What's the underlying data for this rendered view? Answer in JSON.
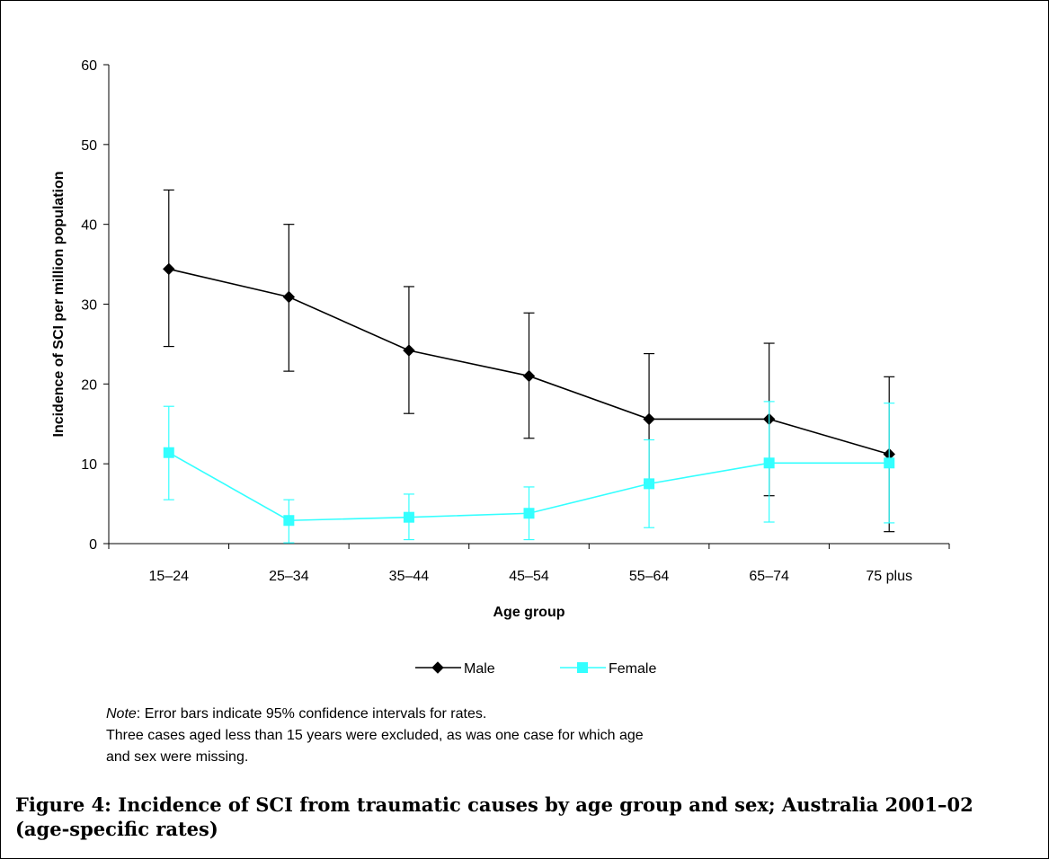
{
  "chart_data": {
    "type": "line",
    "categories": [
      "15–24",
      "25–34",
      "35–44",
      "45–54",
      "55–64",
      "65–74",
      "75 plus"
    ],
    "series": [
      {
        "name": "Male",
        "color": "#000000",
        "marker": "diamond",
        "values": [
          34.4,
          30.9,
          24.2,
          21.0,
          15.6,
          15.6,
          11.2
        ],
        "ci_low": [
          24.7,
          21.6,
          16.3,
          13.2,
          7.6,
          6.0,
          1.5
        ],
        "ci_high": [
          44.3,
          40.0,
          32.2,
          28.9,
          23.8,
          25.1,
          20.9
        ]
      },
      {
        "name": "Female",
        "color": "#33FFFF",
        "marker": "square",
        "values": [
          11.4,
          2.9,
          3.3,
          3.8,
          7.5,
          10.1,
          10.1
        ],
        "ci_low": [
          5.5,
          0.1,
          0.5,
          0.5,
          2.0,
          2.7,
          2.6
        ],
        "ci_high": [
          17.2,
          5.5,
          6.2,
          7.1,
          13.0,
          17.8,
          17.6
        ]
      }
    ],
    "xlabel": "Age group",
    "ylabel": "Incidence of SCI per million population",
    "ylim": [
      0,
      60
    ],
    "yticks": [
      0,
      10,
      20,
      30,
      40,
      50,
      60
    ],
    "grid": false,
    "legend": "bottom"
  },
  "notes": {
    "line1_label": "Note",
    "line1_rest": ": Error bars indicate 95% confidence intervals for rates.",
    "line2": "Three cases aged less than 15 years were excluded, as was one case for which age",
    "line3": "and sex were missing."
  },
  "caption": "Figure 4: Incidence of SCI from traumatic causes by age group and sex; Australia 2001–02 (age-specific rates)"
}
